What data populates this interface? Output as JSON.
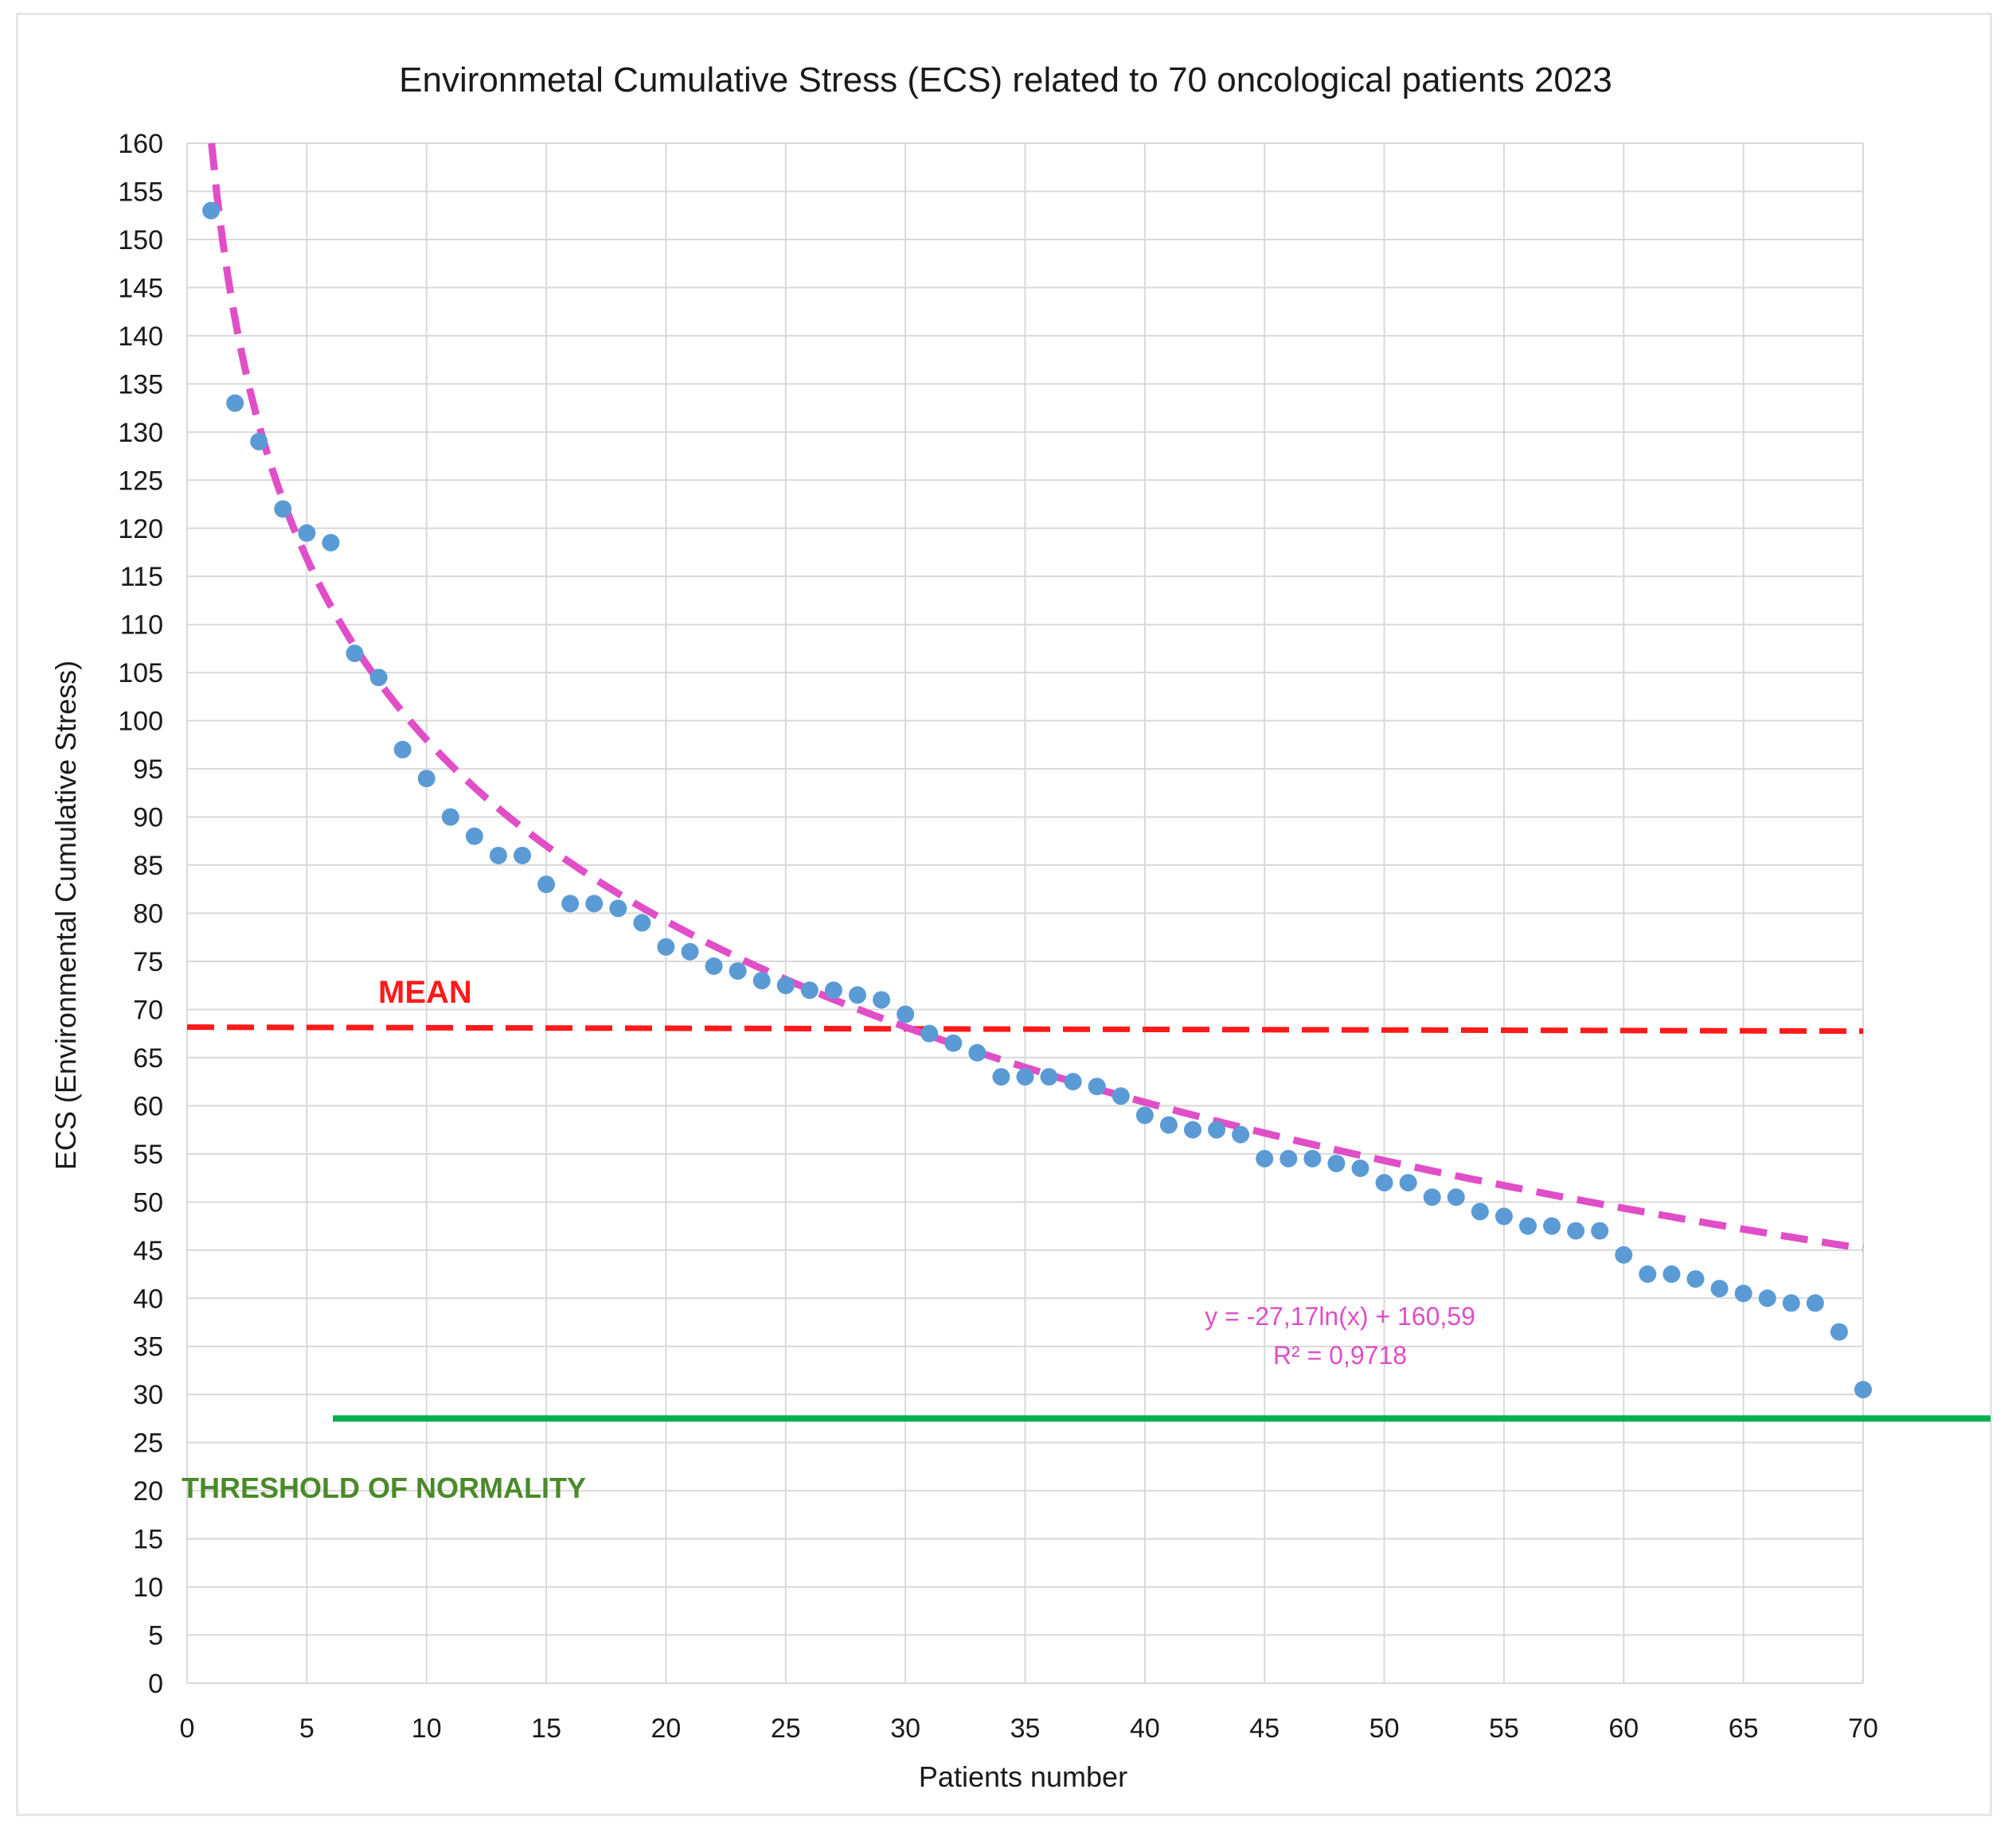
{
  "chart_data": {
    "type": "scatter",
    "title": "Environmetal  Cumulative Stress (ECS) related to 70 oncological patients 2023",
    "xlabel": "Patients number",
    "ylabel": "ECS (Environmental Cumulative Stress)",
    "xlim": [
      0,
      70
    ],
    "ylim": [
      0,
      160
    ],
    "xticks": [
      0,
      5,
      10,
      15,
      20,
      25,
      30,
      35,
      40,
      45,
      50,
      55,
      60,
      65,
      70
    ],
    "yticks": [
      0,
      5,
      10,
      15,
      20,
      25,
      30,
      35,
      40,
      45,
      50,
      55,
      60,
      65,
      70,
      75,
      80,
      85,
      90,
      95,
      100,
      105,
      110,
      115,
      120,
      125,
      130,
      135,
      140,
      145,
      150,
      155,
      160
    ],
    "grid": true,
    "series": [
      {
        "color": "#5b9bd5",
        "x": [
          1,
          2,
          3,
          4,
          5,
          6,
          7,
          8,
          9,
          10,
          11,
          12,
          13,
          14,
          15,
          16,
          17,
          18,
          19,
          20,
          21,
          22,
          23,
          24,
          25,
          26,
          27,
          28,
          29,
          30,
          31,
          32,
          33,
          34,
          35,
          36,
          37,
          38,
          39,
          40,
          41,
          42,
          43,
          44,
          45,
          46,
          47,
          48,
          49,
          50,
          51,
          52,
          53,
          54,
          55,
          56,
          57,
          58,
          59,
          60,
          61,
          62,
          63,
          64,
          65,
          66,
          67,
          68,
          69,
          70
        ],
        "y": [
          153,
          133,
          129,
          122,
          119.5,
          118.5,
          107,
          104.5,
          97,
          94,
          90,
          88,
          86,
          86,
          83,
          81,
          81,
          80.5,
          79,
          76.5,
          76,
          74.5,
          74,
          73,
          72.5,
          72,
          72,
          71.5,
          71,
          69.5,
          67.5,
          66.5,
          65.5,
          63,
          63,
          63,
          62.5,
          62,
          61,
          59,
          58,
          57.5,
          57.5,
          57,
          54.5,
          54.5,
          54.5,
          54,
          53.5,
          52,
          52,
          50.5,
          50.5,
          49,
          48.5,
          47.5,
          47.5,
          47,
          47,
          44.5,
          42.5,
          42.5,
          42,
          41,
          40.5,
          40,
          39.5,
          39.5,
          36.5,
          30.5
        ]
      }
    ],
    "trendline": {
      "type": "logarithmic",
      "a": -27.17,
      "b": 160.59,
      "color": "#e04ec8",
      "equation": "y = -27,17ln(x) + 160,59",
      "r2": "R² = 0,9718"
    },
    "mean_line": {
      "label": "MEAN",
      "y": 68,
      "color": "#ff1a1a"
    },
    "threshold_line": {
      "label": "THRESHOLD OF NORMALITY",
      "y": 27.5,
      "color": "#00b050",
      "label_color": "#4a8a2a"
    }
  }
}
